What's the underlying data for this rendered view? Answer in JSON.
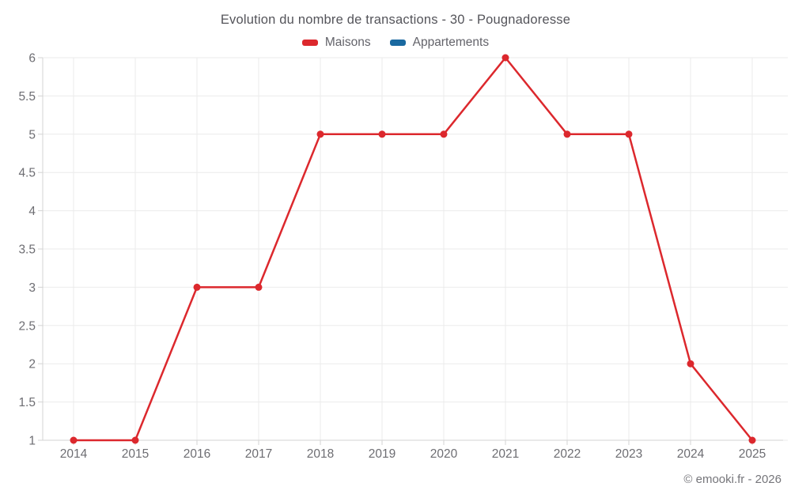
{
  "footer": {
    "copyright": "© emooki.fr - 2026"
  },
  "chart_data": {
    "type": "line",
    "title": "Evolution du nombre de transactions - 30 - Pougnadoresse",
    "categories": [
      "2014",
      "2015",
      "2016",
      "2017",
      "2018",
      "2019",
      "2020",
      "2021",
      "2022",
      "2023",
      "2024",
      "2025"
    ],
    "series": [
      {
        "name": "Maisons",
        "color": "#dc282d",
        "values": [
          1,
          1,
          3,
          3,
          5,
          5,
          5,
          6,
          5,
          5,
          2,
          1
        ]
      },
      {
        "name": "Appartements",
        "color": "#1a69a0",
        "values": []
      }
    ],
    "xlabel": "",
    "ylabel": "",
    "ylim": [
      1,
      6
    ],
    "ytick_step": 0.5,
    "grid": true,
    "legend_position": "top"
  }
}
